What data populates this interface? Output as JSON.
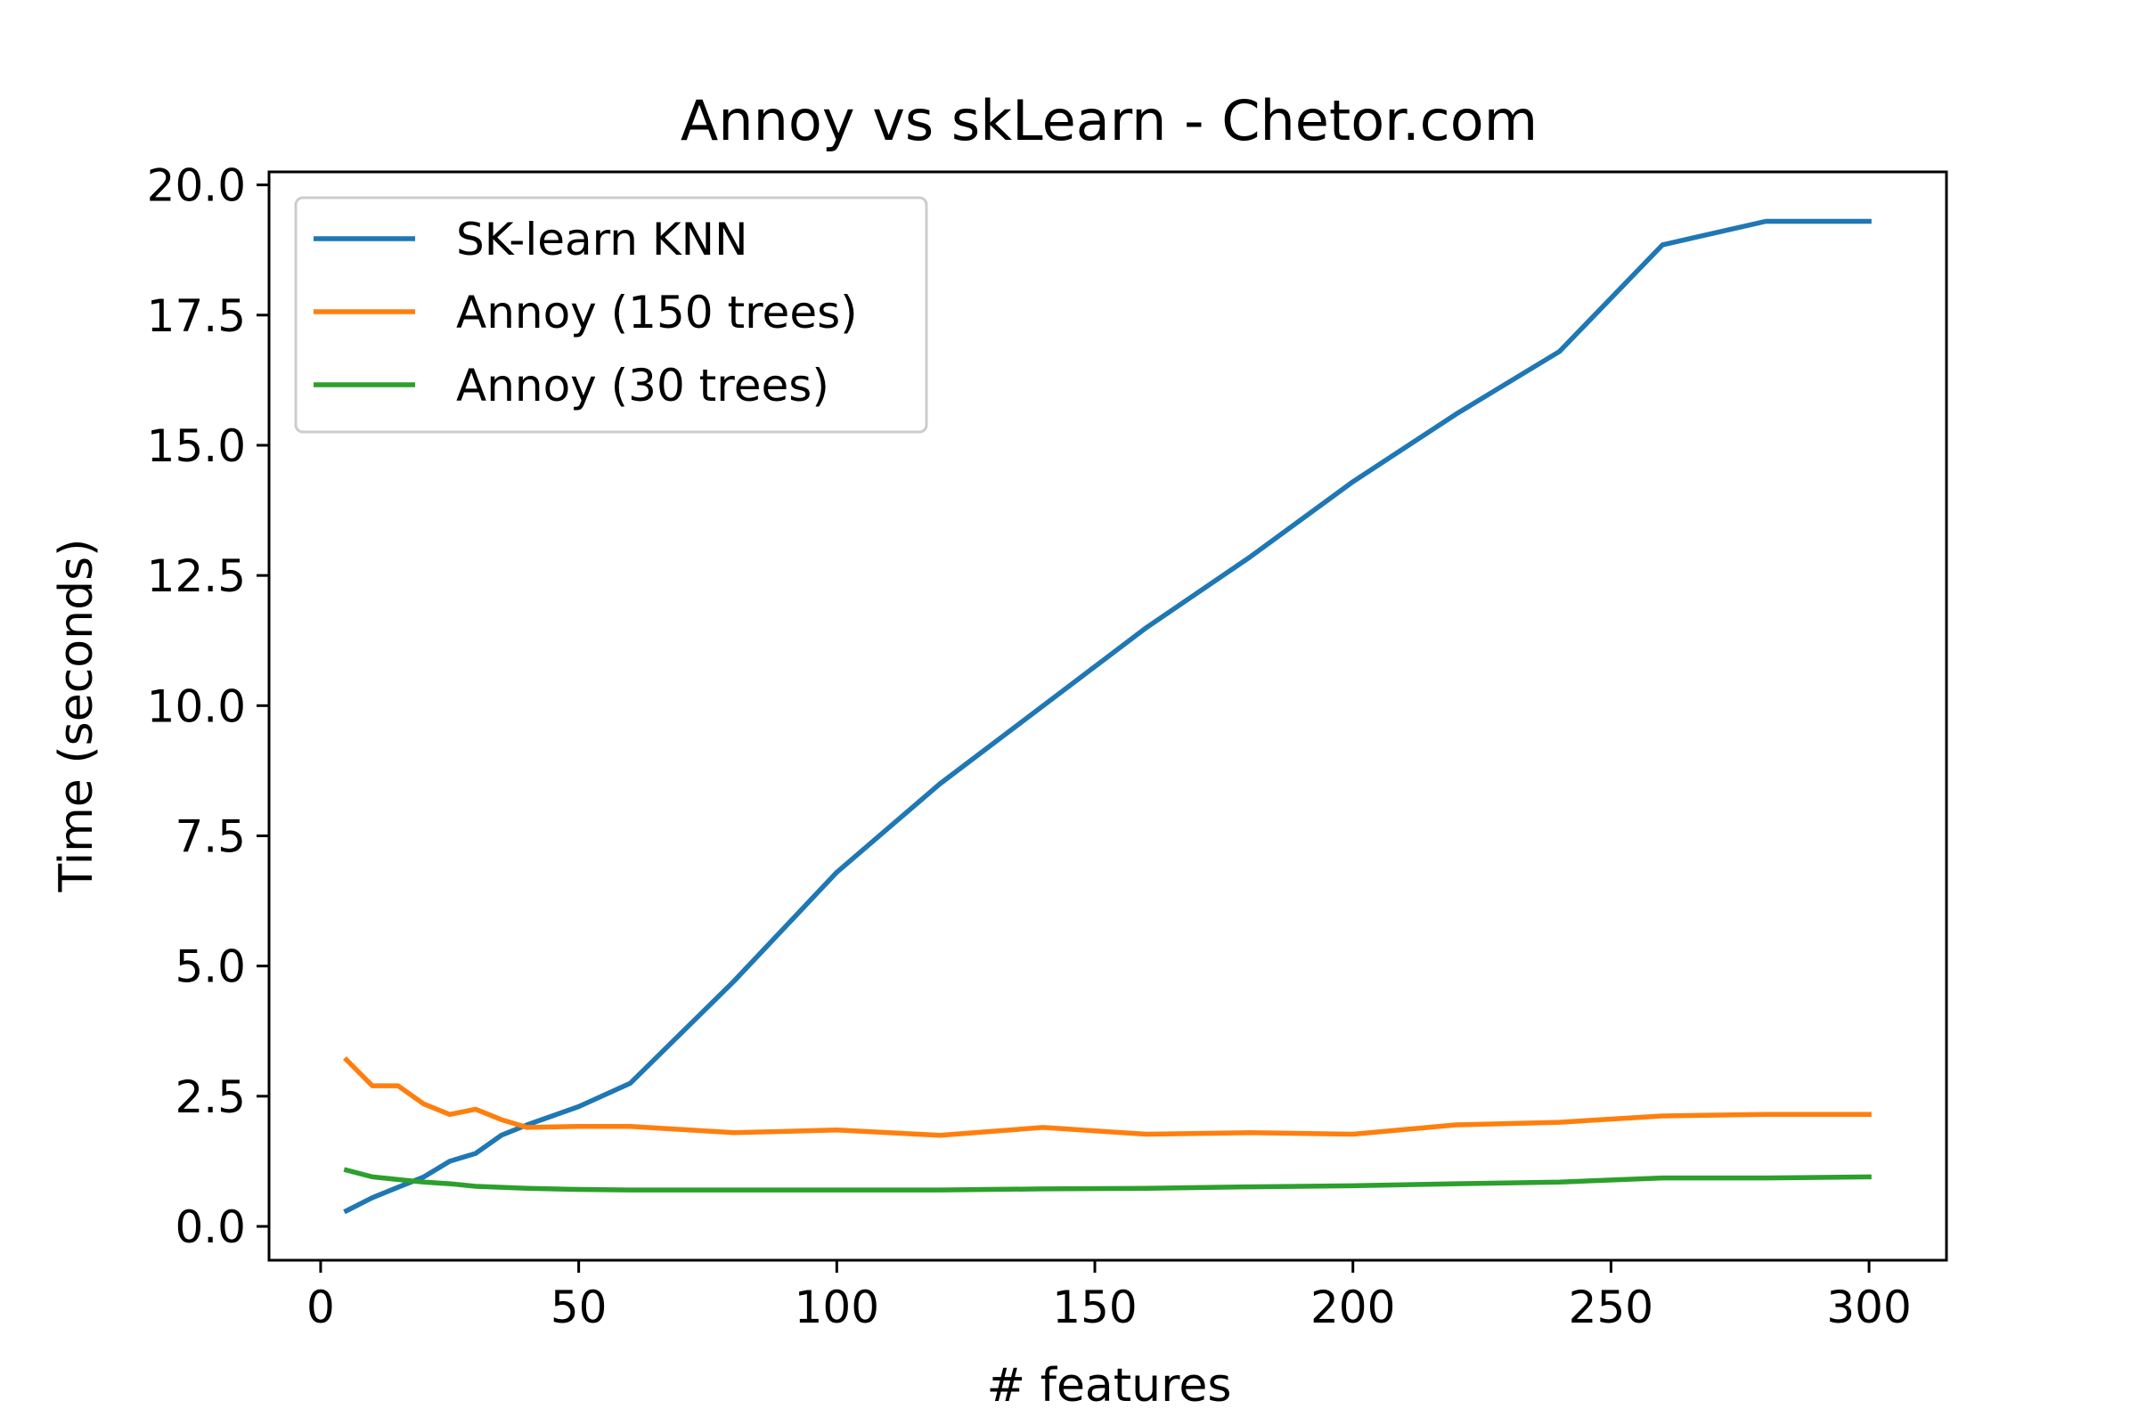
{
  "chart_data": {
    "type": "line",
    "title": "Annoy vs skLearn - Chetor.com",
    "xlabel": "# features",
    "ylabel": "Time (seconds)",
    "xlim": [
      -10,
      315
    ],
    "ylim": [
      -0.65,
      20.25
    ],
    "xticks": [
      0,
      50,
      100,
      150,
      200,
      250,
      300
    ],
    "xtick_labels": [
      "0",
      "50",
      "100",
      "150",
      "200",
      "250",
      "300"
    ],
    "yticks": [
      0,
      2.5,
      5,
      7.5,
      10,
      12.5,
      15,
      17.5,
      20
    ],
    "ytick_labels": [
      "0.0",
      "2.5",
      "5.0",
      "7.5",
      "10.0",
      "12.5",
      "15.0",
      "17.5",
      "20.0"
    ],
    "grid": false,
    "legend_position": "upper-left",
    "x": [
      5,
      10,
      15,
      20,
      25,
      30,
      35,
      40,
      50,
      60,
      80,
      100,
      120,
      140,
      160,
      180,
      200,
      220,
      240,
      260,
      280,
      300
    ],
    "series": [
      {
        "name": "SK-learn KNN",
        "color": "#1f77b4",
        "values": [
          0.3,
          0.55,
          0.75,
          0.95,
          1.25,
          1.4,
          1.75,
          1.95,
          2.3,
          2.75,
          4.7,
          6.8,
          8.5,
          10.0,
          11.5,
          12.85,
          14.3,
          15.6,
          16.8,
          18.85,
          19.3,
          19.3
        ]
      },
      {
        "name": "Annoy (150 trees)",
        "color": "#ff7f0e",
        "values": [
          3.2,
          2.7,
          2.7,
          2.35,
          2.15,
          2.25,
          2.05,
          1.9,
          1.92,
          1.92,
          1.8,
          1.85,
          1.75,
          1.9,
          1.77,
          1.8,
          1.77,
          1.95,
          2.0,
          2.12,
          2.15,
          2.15
        ]
      },
      {
        "name": "Annoy (30 trees)",
        "color": "#2ca02c",
        "values": [
          1.08,
          0.95,
          0.9,
          0.85,
          0.82,
          0.77,
          0.75,
          0.73,
          0.71,
          0.7,
          0.7,
          0.7,
          0.7,
          0.72,
          0.73,
          0.76,
          0.78,
          0.82,
          0.85,
          0.93,
          0.93,
          0.95
        ]
      }
    ]
  }
}
